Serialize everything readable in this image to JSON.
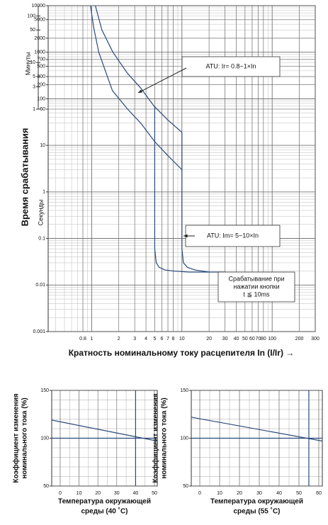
{
  "chart_data": [
    {
      "type": "line",
      "log_x": true,
      "log_y": true,
      "log_minor_grid": true,
      "xlabel": "Кратность номинальному току расцепителя In (I/Ir) →",
      "ylabel": "Время срабатывания",
      "y_unit_label": "Секунды",
      "y2_unit_label": "Минуты",
      "xlim": [
        0.33,
        300
      ],
      "ylim": [
        0.001,
        10000
      ],
      "xticks": [
        0.8,
        1,
        2,
        3,
        4,
        5,
        6,
        7,
        8,
        10,
        20,
        30,
        40,
        50,
        60,
        70,
        80,
        100,
        200,
        300
      ],
      "yticks": [
        10000,
        5000,
        2000,
        1000,
        700,
        500,
        300,
        200,
        100,
        60,
        10,
        1,
        0.1,
        0.01,
        0.001
      ],
      "y2lim": [
        1.66667e-05,
        166.667
      ],
      "y2ticks": [
        100,
        50,
        10,
        5,
        3,
        1
      ],
      "color": "#2b4a7a",
      "series": [
        {
          "x": [
            1.1,
            1.3,
            1.72,
            2.5,
            3.5,
            4.9,
            7,
            10
          ],
          "values": [
            10000,
            3000,
            1000,
            350,
            170,
            70,
            35,
            19
          ]
        },
        {
          "x": [
            0.97,
            1.05,
            1.2,
            1.7,
            2.5,
            3.5,
            5,
            7,
            10
          ],
          "values": [
            10000,
            3500,
            1000,
            150,
            60,
            30,
            12,
            6,
            3
          ]
        },
        {
          "x": [
            5,
            5,
            5.2,
            5.6,
            6.5,
            8,
            12,
            20
          ],
          "values": [
            70,
            0.06,
            0.03,
            0.024,
            0.021,
            0.02,
            0.019,
            0.019
          ]
        },
        {
          "x": [
            10,
            10,
            10.4,
            11.5,
            14,
            20,
            30
          ],
          "values": [
            19,
            0.06,
            0.03,
            0.024,
            0.021,
            0.019,
            0.019
          ]
        }
      ],
      "annotations": [
        [
          "ATU: Ir= 0.8~1×In"
        ],
        [
          "ATU: Im= 5~10×In"
        ],
        [
          "Срабатывание при",
          "нажатии кнопки",
          "t ≦ 10ms"
        ]
      ]
    },
    {
      "type": "line",
      "xlim": [
        -4.5,
        51.5
      ],
      "ylim": [
        50,
        150
      ],
      "xticks": [
        0,
        10,
        20,
        30,
        40,
        50
      ],
      "yticks": [
        50,
        100,
        150
      ],
      "grid_step": [
        5,
        10
      ],
      "ref_x": 40,
      "ref_y": 100,
      "color": "#2b4a7a",
      "ylabel": [
        "Коэффициент изменения",
        "номинального тока (%)"
      ],
      "xlabel": [
        "Температура окружающей",
        "среды (40 ˚C)"
      ],
      "series": [
        {
          "x": [
            -4.5,
            51.5
          ],
          "values": [
            119,
            97
          ]
        }
      ]
    },
    {
      "type": "line",
      "xlim": [
        -4.3,
        61.8
      ],
      "ylim": [
        50,
        150
      ],
      "xticks": [
        0,
        10,
        20,
        30,
        40,
        50,
        60
      ],
      "yticks": [
        50,
        100,
        150
      ],
      "grid_step": [
        5,
        10
      ],
      "ref_x": 55,
      "ref_y": 100,
      "color": "#2b4a7a",
      "ylabel": [
        "Коэффициент изменения",
        "номинального тока (%)"
      ],
      "xlabel": [
        "Температура окружающей",
        "среды (55 ˚C)"
      ],
      "series": [
        {
          "x": [
            -4.3,
            61.8
          ],
          "values": [
            122,
            97
          ]
        }
      ]
    }
  ]
}
